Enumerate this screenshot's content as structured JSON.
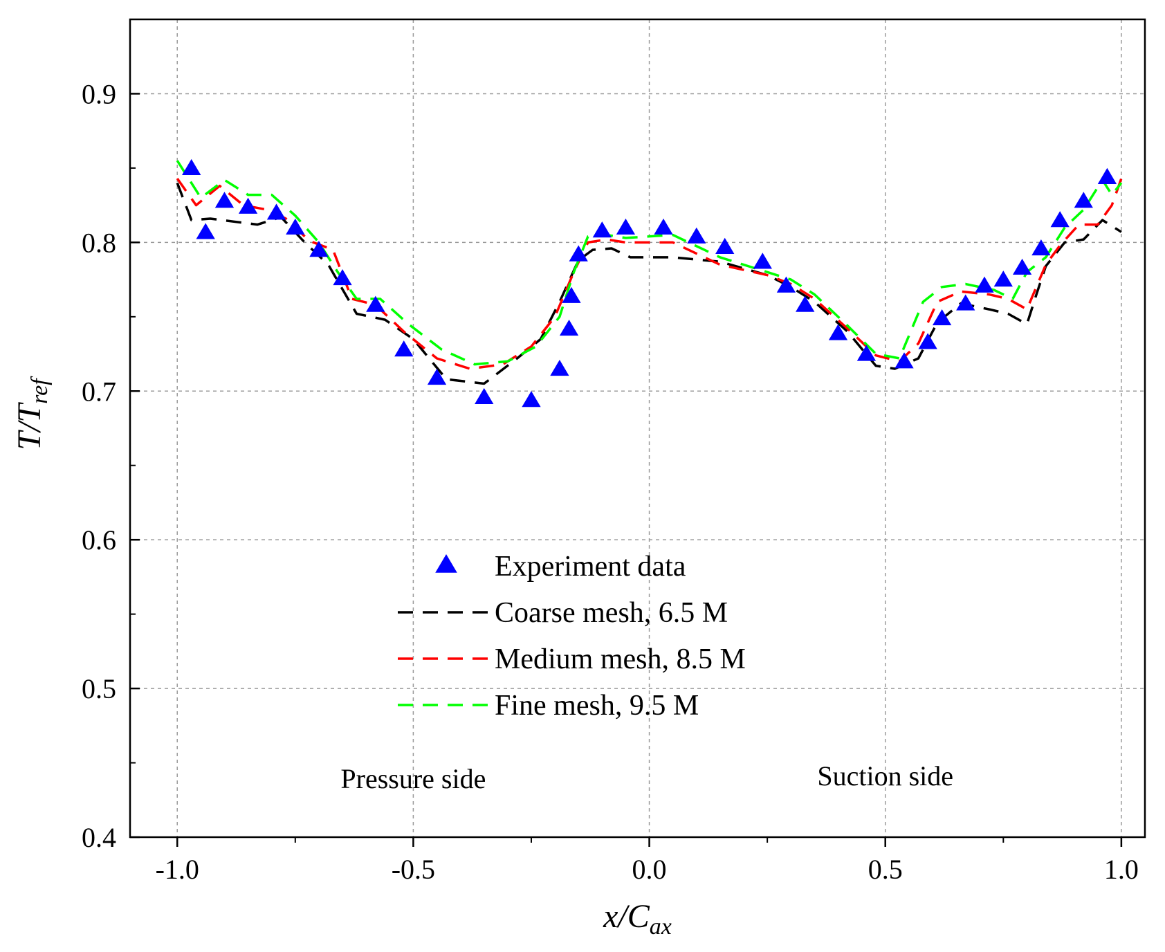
{
  "chart_data": {
    "type": "line",
    "title": "",
    "xlabel": {
      "main": "x/C",
      "sub": "ax"
    },
    "ylabel": {
      "main": "T/T",
      "sub": "ref"
    },
    "xlim": [
      -1.1,
      1.05
    ],
    "ylim": [
      0.4,
      0.95
    ],
    "grid": true,
    "legend_position": "center",
    "x_ticks": [
      {
        "value": -1.0,
        "label": "-1.0"
      },
      {
        "value": -0.5,
        "label": "-0.5"
      },
      {
        "value": 0.0,
        "label": "0.0"
      },
      {
        "value": 0.5,
        "label": "0.5"
      },
      {
        "value": 1.0,
        "label": "1.0"
      }
    ],
    "x_minor_ticks": [
      -0.75,
      -0.25,
      0.25,
      0.75
    ],
    "y_ticks": [
      {
        "value": 0.4,
        "label": "0.4"
      },
      {
        "value": 0.5,
        "label": "0.5"
      },
      {
        "value": 0.6,
        "label": "0.6"
      },
      {
        "value": 0.7,
        "label": "0.7"
      },
      {
        "value": 0.8,
        "label": "0.8"
      },
      {
        "value": 0.9,
        "label": "0.9"
      }
    ],
    "y_minor_ticks": [
      0.45,
      0.55,
      0.65,
      0.75,
      0.85
    ],
    "annotations": [
      {
        "text": "Pressure side",
        "x": -0.5,
        "y": 0.433
      },
      {
        "text": "Suction side",
        "x": 0.5,
        "y": 0.435
      }
    ],
    "series": [
      {
        "name": "Experiment data",
        "kind": "scatter",
        "marker": "triangle",
        "color": "#0000ff",
        "x": [
          -0.97,
          -0.94,
          -0.9,
          -0.85,
          -0.79,
          -0.75,
          -0.7,
          -0.65,
          -0.58,
          -0.52,
          -0.45,
          -0.35,
          -0.25,
          -0.19,
          -0.17,
          -0.165,
          -0.15,
          -0.1,
          -0.05,
          0.03,
          0.1,
          0.16,
          0.24,
          0.29,
          0.33,
          0.4,
          0.46,
          0.54,
          0.59,
          0.62,
          0.67,
          0.71,
          0.75,
          0.79,
          0.83,
          0.87,
          0.92,
          0.97
        ],
        "y": [
          0.85,
          0.807,
          0.828,
          0.824,
          0.82,
          0.81,
          0.795,
          0.776,
          0.758,
          0.728,
          0.709,
          0.696,
          0.694,
          0.715,
          0.742,
          0.764,
          0.792,
          0.808,
          0.81,
          0.81,
          0.804,
          0.797,
          0.787,
          0.771,
          0.758,
          0.739,
          0.725,
          0.72,
          0.733,
          0.749,
          0.759,
          0.771,
          0.775,
          0.783,
          0.796,
          0.815,
          0.828,
          0.844
        ]
      },
      {
        "name": "Coarse mesh, 6.5 M",
        "kind": "line",
        "dash": true,
        "color": "#000000",
        "x": [
          -1.0,
          -0.97,
          -0.93,
          -0.88,
          -0.83,
          -0.78,
          -0.73,
          -0.68,
          -0.62,
          -0.56,
          -0.5,
          -0.43,
          -0.35,
          -0.28,
          -0.23,
          -0.19,
          -0.15,
          -0.12,
          -0.08,
          -0.04,
          0.05,
          0.15,
          0.25,
          0.3,
          0.35,
          0.42,
          0.48,
          0.52,
          0.57,
          0.61,
          0.66,
          0.72,
          0.76,
          0.8,
          0.82,
          0.84,
          0.88,
          0.92,
          0.96,
          1.0
        ],
        "y": [
          0.84,
          0.815,
          0.816,
          0.814,
          0.812,
          0.817,
          0.8,
          0.785,
          0.752,
          0.748,
          0.735,
          0.708,
          0.705,
          0.722,
          0.735,
          0.76,
          0.788,
          0.795,
          0.796,
          0.79,
          0.79,
          0.787,
          0.778,
          0.77,
          0.76,
          0.74,
          0.717,
          0.715,
          0.722,
          0.746,
          0.759,
          0.755,
          0.752,
          0.745,
          0.765,
          0.784,
          0.8,
          0.802,
          0.815,
          0.807
        ]
      },
      {
        "name": "Medium mesh, 8.5 M",
        "kind": "line",
        "dash": true,
        "color": "#ff0000",
        "x": [
          -1.0,
          -0.96,
          -0.91,
          -0.86,
          -0.81,
          -0.77,
          -0.72,
          -0.67,
          -0.63,
          -0.58,
          -0.52,
          -0.45,
          -0.38,
          -0.31,
          -0.25,
          -0.2,
          -0.16,
          -0.13,
          -0.09,
          -0.05,
          0.05,
          0.15,
          0.25,
          0.3,
          0.35,
          0.42,
          0.48,
          0.53,
          0.57,
          0.61,
          0.66,
          0.72,
          0.76,
          0.8,
          0.84,
          0.87,
          0.91,
          0.95,
          0.98,
          1.0
        ],
        "y": [
          0.843,
          0.825,
          0.838,
          0.825,
          0.822,
          0.816,
          0.801,
          0.795,
          0.762,
          0.758,
          0.74,
          0.722,
          0.715,
          0.718,
          0.73,
          0.75,
          0.78,
          0.8,
          0.802,
          0.8,
          0.8,
          0.785,
          0.778,
          0.772,
          0.762,
          0.742,
          0.724,
          0.72,
          0.732,
          0.76,
          0.767,
          0.765,
          0.762,
          0.755,
          0.785,
          0.798,
          0.812,
          0.812,
          0.825,
          0.843
        ]
      },
      {
        "name": "Fine mesh, 9.5 M",
        "kind": "line",
        "dash": true,
        "color": "#00ff00",
        "x": [
          -1.0,
          -0.95,
          -0.9,
          -0.85,
          -0.8,
          -0.75,
          -0.7,
          -0.66,
          -0.62,
          -0.57,
          -0.51,
          -0.44,
          -0.37,
          -0.3,
          -0.24,
          -0.19,
          -0.16,
          -0.13,
          -0.09,
          -0.05,
          0.05,
          0.15,
          0.25,
          0.3,
          0.35,
          0.42,
          0.48,
          0.53,
          0.58,
          0.62,
          0.67,
          0.73,
          0.77,
          0.8,
          0.84,
          0.88,
          0.92,
          0.96,
          0.98,
          1.0
        ],
        "y": [
          0.855,
          0.83,
          0.842,
          0.832,
          0.832,
          0.818,
          0.8,
          0.78,
          0.762,
          0.762,
          0.745,
          0.728,
          0.718,
          0.72,
          0.73,
          0.75,
          0.78,
          0.804,
          0.805,
          0.803,
          0.805,
          0.79,
          0.78,
          0.775,
          0.765,
          0.744,
          0.725,
          0.722,
          0.76,
          0.77,
          0.772,
          0.768,
          0.762,
          0.78,
          0.79,
          0.81,
          0.822,
          0.842,
          0.832,
          0.84
        ]
      }
    ]
  }
}
